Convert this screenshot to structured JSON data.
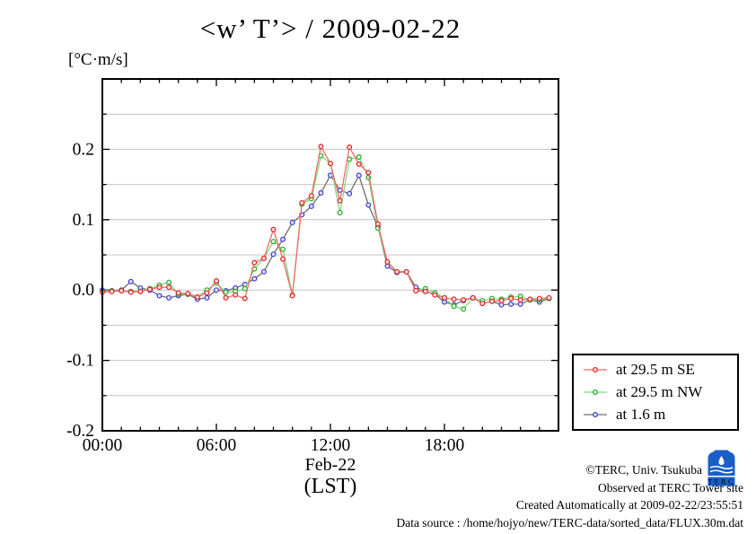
{
  "title": "<w’ T’> / 2009-02-22",
  "unit_label": "[°C·m/s]",
  "xlabel_month": "Feb-22",
  "xlabel_tz": "(LST)",
  "logo": {
    "text": "TERC",
    "color": "#1a5fc8"
  },
  "annotations": {
    "copyright": "©TERC, Univ. Tsukuba",
    "observed": "Observed at TERC Tower site",
    "created": "Created Automatically at 2009-02-22/23:55:51",
    "source": "Data source : /home/hojyo/new/TERC-data/sorted_data/FLUX.30m.dat"
  },
  "chart_data": {
    "type": "line",
    "title": "<w' T'> / 2009-02-22",
    "ylabel": "[°C·m/s]",
    "xlabel": "Feb-22 (LST)",
    "xlim": [
      0,
      24
    ],
    "ylim": [
      -0.2,
      0.3
    ],
    "grid": "horizontal, every 0.05",
    "legend_position": "outside right, lower",
    "colors": {
      "grid": "#c4c4c4",
      "axis": "#000000"
    },
    "xticks_major": {
      "hours": [
        0,
        6,
        12,
        18
      ],
      "labels": [
        "00:00",
        "06:00",
        "12:00",
        "18:00"
      ]
    },
    "xticks_minor_step_hours": 1,
    "yticks_major": {
      "values": [
        0.2,
        0.1,
        0.0,
        -0.1,
        -0.2
      ],
      "labels": [
        "0.2",
        "0.1",
        "0.0",
        "-0.1",
        "-0.2"
      ]
    },
    "yticks_minor_step": 0.05,
    "x_hours": [
      0,
      0.5,
      1,
      1.5,
      2,
      2.5,
      3,
      3.5,
      4,
      4.5,
      5,
      5.5,
      6,
      6.5,
      7,
      7.5,
      8,
      8.5,
      9,
      9.5,
      10,
      10.5,
      11,
      11.5,
      12,
      12.5,
      13,
      13.5,
      14,
      14.5,
      15,
      15.5,
      16,
      16.5,
      17,
      17.5,
      18,
      18.5,
      19,
      19.5,
      20,
      20.5,
      21,
      21.5,
      22,
      22.5,
      23,
      23.5
    ],
    "series": [
      {
        "name": "at 29.5 m SE",
        "line_color": "#f26a6a",
        "marker_color": "#dd2222",
        "marker_fill": "#ffe2e2",
        "values": [
          -0.003,
          -0.002,
          -0.001,
          -0.003,
          -0.002,
          0.001,
          0.004,
          0.004,
          -0.004,
          -0.005,
          -0.01,
          -0.004,
          0.013,
          -0.011,
          -0.007,
          -0.012,
          0.039,
          0.045,
          0.086,
          0.044,
          -0.008,
          0.124,
          0.134,
          0.204,
          0.18,
          0.127,
          0.203,
          0.179,
          0.167,
          0.094,
          0.04,
          0.026,
          0.026,
          -0.001,
          -0.002,
          -0.007,
          -0.011,
          -0.013,
          -0.014,
          -0.011,
          -0.019,
          -0.016,
          -0.015,
          -0.012,
          -0.014,
          -0.013,
          -0.012,
          -0.011
        ]
      },
      {
        "name": "at 29.5 m NW",
        "line_color": "#7fd87f",
        "marker_color": "#22aa22",
        "marker_fill": "#e2ffe2",
        "values": [
          -0.002,
          -0.001,
          -0.001,
          -0.002,
          -0.002,
          0.002,
          0.007,
          0.011,
          -0.006,
          -0.006,
          -0.01,
          0.0,
          0.01,
          -0.003,
          -0.002,
          0.002,
          0.03,
          0.045,
          0.069,
          0.058,
          -0.007,
          0.122,
          0.13,
          0.191,
          0.18,
          0.11,
          0.186,
          0.189,
          0.16,
          0.088,
          0.04,
          0.026,
          0.026,
          -0.001,
          0.002,
          -0.004,
          -0.011,
          -0.023,
          -0.027,
          -0.011,
          -0.015,
          -0.012,
          -0.013,
          -0.01,
          -0.009,
          -0.014,
          -0.014,
          -0.012
        ]
      },
      {
        "name": "at 1.6 m",
        "line_color": "#6f6f6f",
        "marker_color": "#3b3bd0",
        "marker_fill": "#e2e2ff",
        "values": [
          0.0,
          -0.001,
          0.0,
          0.012,
          0.003,
          0.0,
          -0.008,
          -0.011,
          -0.008,
          -0.006,
          -0.013,
          -0.011,
          0.0,
          -0.001,
          0.003,
          0.008,
          0.016,
          0.026,
          0.051,
          0.072,
          0.096,
          0.107,
          0.119,
          0.138,
          0.163,
          0.142,
          0.137,
          0.163,
          0.121,
          0.09,
          0.034,
          0.025,
          0.026,
          0.004,
          -0.002,
          -0.006,
          -0.017,
          -0.021,
          -0.015,
          -0.011,
          -0.019,
          -0.016,
          -0.021,
          -0.02,
          -0.02,
          -0.014,
          -0.017,
          -0.012
        ]
      }
    ]
  }
}
